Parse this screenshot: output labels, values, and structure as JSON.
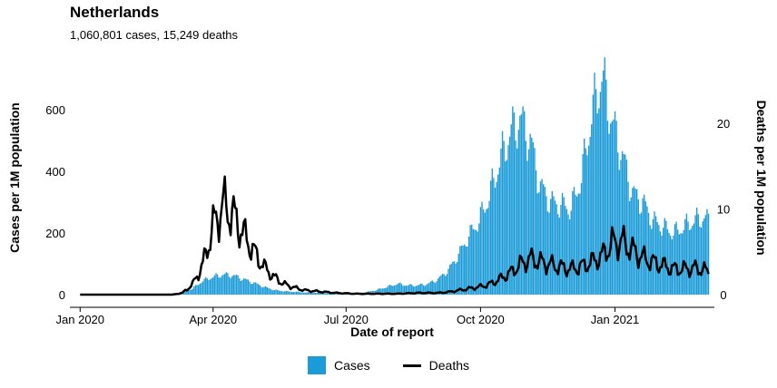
{
  "colors": {
    "cases": "#1b9bd7",
    "deaths": "#000000",
    "axis": "#000000"
  },
  "chart_data": {
    "type": "bar+line",
    "title": "Netherlands",
    "subtitle": "1,060,801 cases, 15,249 deaths",
    "xlabel": "Date of report",
    "ylabel_left": "Cases per 1M population",
    "ylabel_right": "Deaths per 1M population",
    "x_range": [
      "2019-12-25",
      "2021-03-10"
    ],
    "x_ticks": [
      {
        "date": "2020-01-01",
        "label": "Jan 2020"
      },
      {
        "date": "2020-04-01",
        "label": "Apr 2020"
      },
      {
        "date": "2020-07-01",
        "label": "Jul 2020"
      },
      {
        "date": "2020-10-01",
        "label": "Oct 2020"
      },
      {
        "date": "2021-01-01",
        "label": "Jan 2021"
      }
    ],
    "y_left": {
      "range": [
        0,
        750
      ],
      "ticks": [
        0,
        200,
        400,
        600
      ]
    },
    "y_right": {
      "range": [
        0,
        27
      ],
      "ticks": [
        0,
        10,
        20
      ]
    },
    "grid": false,
    "legend_position": "bottom",
    "series": [
      {
        "name": "Cases",
        "type": "bar",
        "axis": "left",
        "weekly_points": [
          [
            "2020-01-01",
            0
          ],
          [
            "2020-02-26",
            0
          ],
          [
            "2020-03-04",
            2
          ],
          [
            "2020-03-11",
            6
          ],
          [
            "2020-03-18",
            20
          ],
          [
            "2020-03-25",
            45
          ],
          [
            "2020-04-01",
            58
          ],
          [
            "2020-04-08",
            65
          ],
          [
            "2020-04-15",
            62
          ],
          [
            "2020-04-22",
            50
          ],
          [
            "2020-04-29",
            38
          ],
          [
            "2020-05-06",
            25
          ],
          [
            "2020-05-13",
            15
          ],
          [
            "2020-05-20",
            11
          ],
          [
            "2020-05-27",
            9
          ],
          [
            "2020-06-03",
            7
          ],
          [
            "2020-06-10",
            6
          ],
          [
            "2020-06-17",
            5
          ],
          [
            "2020-06-24",
            4
          ],
          [
            "2020-07-01",
            4
          ],
          [
            "2020-07-08",
            5
          ],
          [
            "2020-07-15",
            8
          ],
          [
            "2020-07-22",
            15
          ],
          [
            "2020-07-29",
            25
          ],
          [
            "2020-08-05",
            35
          ],
          [
            "2020-08-12",
            30
          ],
          [
            "2020-08-19",
            30
          ],
          [
            "2020-08-26",
            35
          ],
          [
            "2020-09-02",
            50
          ],
          [
            "2020-09-09",
            80
          ],
          [
            "2020-09-16",
            130
          ],
          [
            "2020-09-23",
            190
          ],
          [
            "2020-09-30",
            240
          ],
          [
            "2020-10-07",
            320
          ],
          [
            "2020-10-14",
            430
          ],
          [
            "2020-10-21",
            520
          ],
          [
            "2020-10-28",
            570
          ],
          [
            "2020-11-04",
            500
          ],
          [
            "2020-11-11",
            350
          ],
          [
            "2020-11-18",
            300
          ],
          [
            "2020-11-25",
            290
          ],
          [
            "2020-12-02",
            280
          ],
          [
            "2020-12-09",
            380
          ],
          [
            "2020-12-16",
            580
          ],
          [
            "2020-12-23",
            710
          ],
          [
            "2020-12-30",
            560
          ],
          [
            "2021-01-06",
            450
          ],
          [
            "2021-01-13",
            330
          ],
          [
            "2021-01-20",
            300
          ],
          [
            "2021-01-27",
            240
          ],
          [
            "2021-02-03",
            220
          ],
          [
            "2021-02-10",
            200
          ],
          [
            "2021-02-17",
            220
          ],
          [
            "2021-02-24",
            240
          ],
          [
            "2021-03-03",
            250
          ],
          [
            "2021-03-06",
            240
          ]
        ]
      },
      {
        "name": "Deaths",
        "type": "line",
        "axis": "right",
        "weekly_points": [
          [
            "2020-01-01",
            0
          ],
          [
            "2020-03-04",
            0
          ],
          [
            "2020-03-11",
            0.2
          ],
          [
            "2020-03-18",
            1.2
          ],
          [
            "2020-03-25",
            3.5
          ],
          [
            "2020-04-01",
            8
          ],
          [
            "2020-04-08",
            10.5
          ],
          [
            "2020-04-15",
            9.2
          ],
          [
            "2020-04-22",
            7
          ],
          [
            "2020-04-29",
            5
          ],
          [
            "2020-05-06",
            3.2
          ],
          [
            "2020-05-13",
            2
          ],
          [
            "2020-05-20",
            1.2
          ],
          [
            "2020-05-27",
            0.8
          ],
          [
            "2020-06-03",
            0.5
          ],
          [
            "2020-06-10",
            0.4
          ],
          [
            "2020-06-17",
            0.3
          ],
          [
            "2020-06-24",
            0.2
          ],
          [
            "2020-07-01",
            0.15
          ],
          [
            "2020-07-08",
            0.1
          ],
          [
            "2020-07-15",
            0.1
          ],
          [
            "2020-07-22",
            0.1
          ],
          [
            "2020-07-29",
            0.1
          ],
          [
            "2020-08-05",
            0.1
          ],
          [
            "2020-08-12",
            0.15
          ],
          [
            "2020-08-19",
            0.2
          ],
          [
            "2020-08-26",
            0.2
          ],
          [
            "2020-09-02",
            0.2
          ],
          [
            "2020-09-09",
            0.3
          ],
          [
            "2020-09-16",
            0.5
          ],
          [
            "2020-09-23",
            0.7
          ],
          [
            "2020-09-30",
            0.9
          ],
          [
            "2020-10-07",
            1.2
          ],
          [
            "2020-10-14",
            1.8
          ],
          [
            "2020-10-21",
            2.5
          ],
          [
            "2020-10-28",
            3.5
          ],
          [
            "2020-11-04",
            4.2
          ],
          [
            "2020-11-11",
            3.8
          ],
          [
            "2020-11-18",
            3.5
          ],
          [
            "2020-11-25",
            3.2
          ],
          [
            "2020-12-02",
            3
          ],
          [
            "2020-12-09",
            3.3
          ],
          [
            "2020-12-16",
            3.8
          ],
          [
            "2020-12-23",
            4.5
          ],
          [
            "2020-12-30",
            6
          ],
          [
            "2021-01-06",
            6.2
          ],
          [
            "2021-01-13",
            5.2
          ],
          [
            "2021-01-20",
            4.3
          ],
          [
            "2021-01-27",
            3.8
          ],
          [
            "2021-02-03",
            3.4
          ],
          [
            "2021-02-10",
            3
          ],
          [
            "2021-02-17",
            3
          ],
          [
            "2021-02-24",
            3.1
          ],
          [
            "2021-03-03",
            2.9
          ],
          [
            "2021-03-06",
            2.6
          ]
        ]
      }
    ]
  }
}
